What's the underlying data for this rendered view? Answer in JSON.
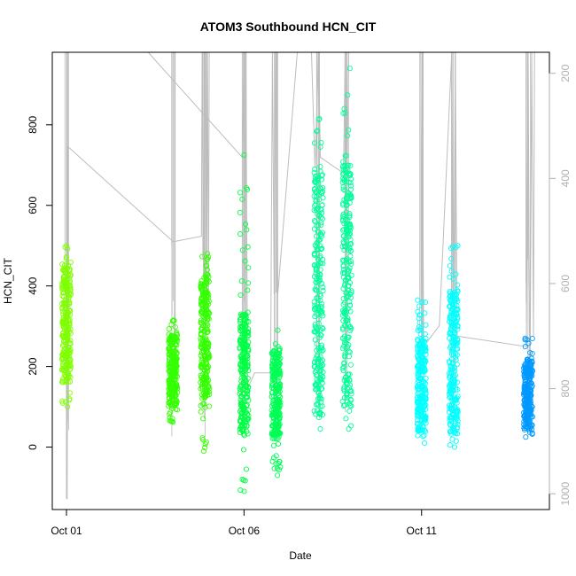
{
  "chart_data": {
    "type": "scatter",
    "title": "ATOM3 Southbound HCN_CIT",
    "xlabel": "Date",
    "ylabel": "HCN_CIT",
    "x_ticks": [
      "Oct 01",
      "Oct 06",
      "Oct 11"
    ],
    "y_ticks": [
      0,
      200,
      400,
      600,
      800
    ],
    "y2_ticks": [
      200,
      400,
      600,
      800,
      1000
    ],
    "x_range_days": [
      30.6,
      44.6
    ],
    "ylim": [
      -155,
      980
    ],
    "y2lim": [
      1030,
      160
    ],
    "y2_axis_color": "#b0b0b0",
    "legend": "none",
    "grid": false,
    "series_colors": {
      "lime": "#7fff00",
      "green": "#33ff00",
      "bright-green": "#00ff44",
      "spring-green": "#00ff99",
      "cyan": "#00ffff",
      "azure": "#0099ff",
      "pressure-trace": "#bdbdbd"
    },
    "clusters": [
      {
        "x": 31.0,
        "ymin": 100,
        "ymax": 500,
        "dense": [
          160,
          460
        ],
        "color": "#7fff00"
      },
      {
        "x": 34.0,
        "ymin": 62,
        "ymax": 315,
        "dense": [
          100,
          280
        ],
        "color": "#33ff00"
      },
      {
        "x": 34.9,
        "ymin": -10,
        "ymax": 480,
        "dense": [
          120,
          430
        ],
        "color": "#33ff00"
      },
      {
        "x": 36.0,
        "ymin": -110,
        "ymax": 725,
        "dense": [
          30,
          330
        ],
        "color": "#00ff44"
      },
      {
        "x": 36.9,
        "ymin": -70,
        "ymax": 290,
        "dense": [
          20,
          240
        ],
        "color": "#00ff55"
      },
      {
        "x": 38.1,
        "ymin": 45,
        "ymax": 815,
        "dense": [
          80,
          690
        ],
        "color": "#00ff99"
      },
      {
        "x": 38.9,
        "ymin": 45,
        "ymax": 940,
        "dense": [
          100,
          700
        ],
        "color": "#00ff99"
      },
      {
        "x": 41.0,
        "ymin": 10,
        "ymax": 365,
        "dense": [
          40,
          270
        ],
        "color": "#00ffff"
      },
      {
        "x": 41.9,
        "ymin": 0,
        "ymax": 500,
        "dense": [
          30,
          390
        ],
        "color": "#00ffff"
      },
      {
        "x": 44.0,
        "ymin": 25,
        "ymax": 270,
        "dense": [
          40,
          220
        ],
        "color": "#0099ff"
      }
    ],
    "pressure_trace": [
      [
        31.0,
        1010
      ],
      [
        31.0,
        160
      ],
      [
        31.02,
        1010
      ],
      [
        31.05,
        340
      ],
      [
        34.0,
        520
      ],
      [
        34.05,
        520
      ],
      [
        34.8,
        510
      ],
      [
        34.82,
        160
      ],
      [
        34.86,
        590
      ],
      [
        34.9,
        160
      ],
      [
        34.95,
        600
      ],
      [
        34.97,
        160
      ],
      [
        35.0,
        620
      ],
      [
        35.02,
        160
      ],
      [
        33.3,
        160
      ],
      [
        35.95,
        360
      ],
      [
        36.0,
        160
      ],
      [
        36.02,
        860
      ],
      [
        36.05,
        160
      ],
      [
        36.1,
        800
      ],
      [
        36.3,
        770
      ],
      [
        36.75,
        770
      ],
      [
        36.8,
        160
      ],
      [
        36.85,
        620
      ],
      [
        36.9,
        160
      ],
      [
        36.95,
        620
      ],
      [
        37.5,
        160
      ],
      [
        37.9,
        160
      ],
      [
        38.0,
        380
      ],
      [
        38.1,
        160
      ],
      [
        38.15,
        360
      ],
      [
        38.8,
        390
      ],
      [
        38.85,
        160
      ],
      [
        38.9,
        390
      ],
      [
        38.95,
        160
      ],
      [
        40.98,
        160
      ],
      [
        41.0,
        720
      ],
      [
        41.02,
        160
      ],
      [
        41.04,
        480
      ],
      [
        41.06,
        720
      ],
      [
        41.5,
        680
      ],
      [
        41.85,
        160
      ],
      [
        41.9,
        700
      ],
      [
        41.95,
        160
      ],
      [
        42.0,
        700
      ],
      [
        43.95,
        720
      ],
      [
        44.0,
        160
      ],
      [
        44.05,
        850
      ],
      [
        44.1,
        160
      ],
      [
        44.15,
        700
      ],
      [
        44.18,
        160
      ]
    ]
  }
}
